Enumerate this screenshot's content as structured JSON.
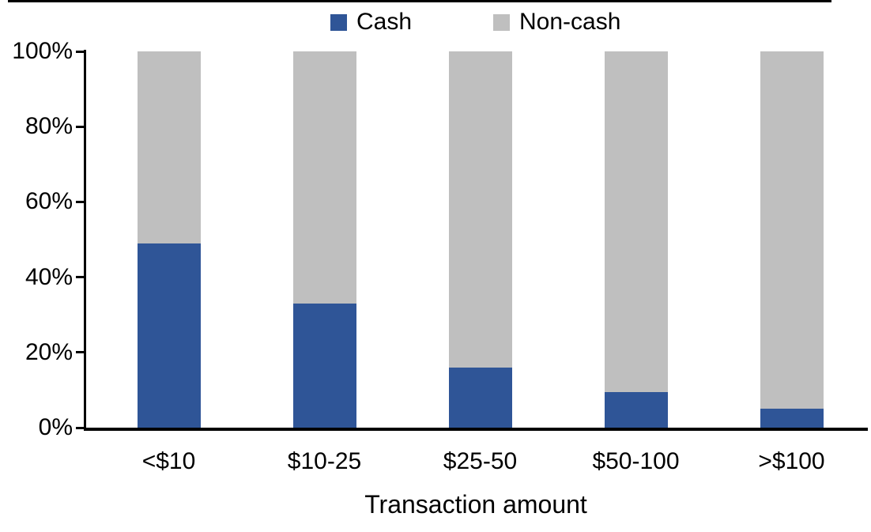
{
  "chart_data": {
    "type": "bar",
    "stacked": true,
    "title": "",
    "xlabel": "Transaction amount",
    "ylabel": "",
    "categories": [
      "<$10",
      "$10-25",
      "$25-50",
      "$50-100",
      ">$100"
    ],
    "series": [
      {
        "name": "Cash",
        "color": "#2F5597",
        "values": [
          49,
          33,
          16,
          9.5,
          5
        ]
      },
      {
        "name": "Non-cash",
        "color": "#BFBFBF",
        "values": [
          51,
          67,
          84,
          90.5,
          95
        ]
      }
    ],
    "ylim": [
      0,
      100
    ],
    "ytick_labels": [
      "0%",
      "20%",
      "40%",
      "60%",
      "80%",
      "100%"
    ],
    "legend_position": "top",
    "grid": false,
    "axis_color": "#000000",
    "background_color": "#FFFFFF"
  }
}
